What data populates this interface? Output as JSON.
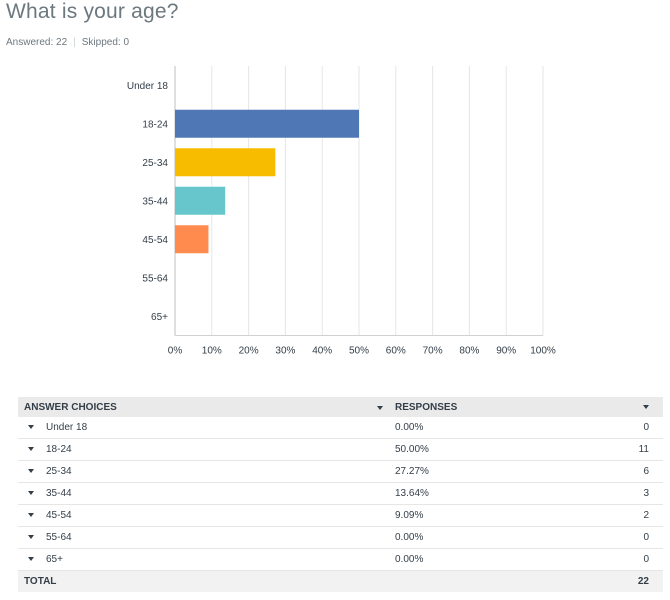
{
  "question": {
    "title": "What is your age?",
    "answered": "Answered: 22",
    "skipped": "Skipped: 0"
  },
  "chart_data": {
    "type": "bar",
    "orientation": "horizontal",
    "categories": [
      "Under 18",
      "18-24",
      "25-34",
      "35-44",
      "45-54",
      "55-64",
      "65+"
    ],
    "values": [
      0,
      50,
      27.27,
      13.64,
      9.09,
      0,
      0
    ],
    "colors": [
      "#4f77b5",
      "#4f77b5",
      "#f7bc00",
      "#67c6cc",
      "#ff8b4f",
      "#9b85b0",
      "#b5b5b5"
    ],
    "xlim": [
      0,
      100
    ],
    "xticks": [
      "0%",
      "10%",
      "20%",
      "30%",
      "40%",
      "50%",
      "60%",
      "70%",
      "80%",
      "90%",
      "100%"
    ],
    "grid": true
  },
  "table": {
    "headers": {
      "choices": "ANSWER CHOICES",
      "responses": "RESPONSES"
    },
    "rows": [
      {
        "choice": "Under 18",
        "percent": "0.00%",
        "count": "0"
      },
      {
        "choice": "18-24",
        "percent": "50.00%",
        "count": "11"
      },
      {
        "choice": "25-34",
        "percent": "27.27%",
        "count": "6"
      },
      {
        "choice": "35-44",
        "percent": "13.64%",
        "count": "3"
      },
      {
        "choice": "45-54",
        "percent": "9.09%",
        "count": "2"
      },
      {
        "choice": "55-64",
        "percent": "0.00%",
        "count": "0"
      },
      {
        "choice": "65+",
        "percent": "0.00%",
        "count": "0"
      }
    ],
    "total_label": "TOTAL",
    "total_count": "22"
  }
}
